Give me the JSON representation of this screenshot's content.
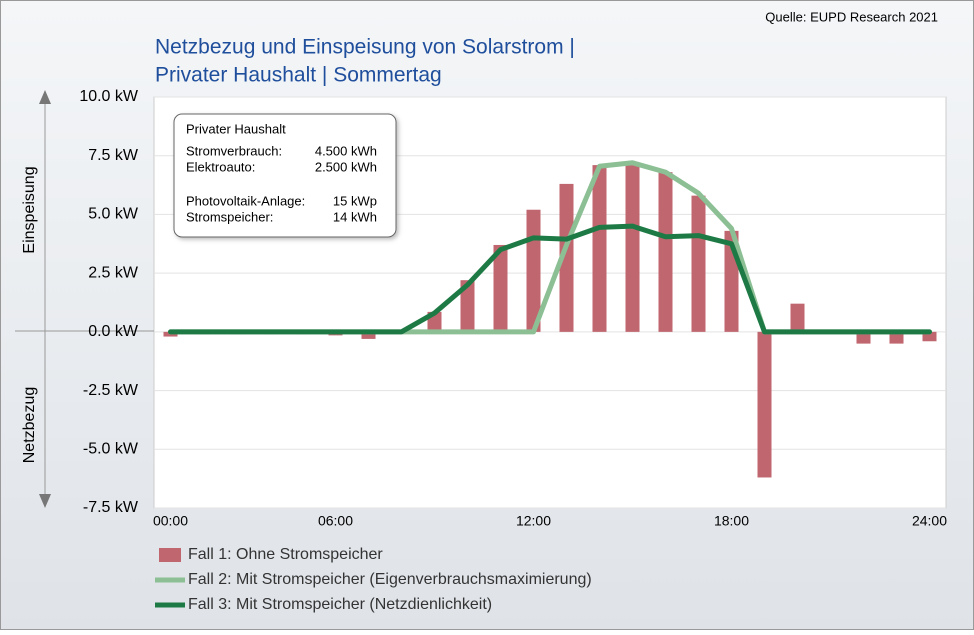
{
  "chart_data": {
    "type": "bar_line",
    "title": [
      "Netzbezug und Einspeisung von Solarstrom |",
      "Privater Haushalt | Sommertag"
    ],
    "source": "Quelle: EUPD Research 2021",
    "axis_labels": {
      "upper": "Einspeisung",
      "lower": "Netzbezug"
    },
    "categories": [
      "00:00",
      null,
      null,
      null,
      null,
      "06:00",
      null,
      null,
      null,
      null,
      null,
      "12:00",
      null,
      null,
      null,
      null,
      null,
      "18:00",
      null,
      null,
      null,
      null,
      null,
      "24:00"
    ],
    "series": [
      {
        "name": "Fall 1: Ohne Stromspeicher",
        "kind": "bar",
        "color": "#c0666f",
        "values": [
          -0.2,
          -0.1,
          -0.1,
          -0.1,
          -0.1,
          -0.15,
          -0.3,
          0,
          0.85,
          2.2,
          3.7,
          5.2,
          6.3,
          7.1,
          7.1,
          6.8,
          5.8,
          4.3,
          -6.2,
          1.2,
          0,
          -0.5,
          -0.5,
          -0.4
        ]
      },
      {
        "name": "Fall 2: Mit Stromspeicher (Eigenverbrauchsmaximierung)",
        "kind": "line",
        "color": "#8cbf94",
        "values": [
          0,
          0,
          0,
          0,
          0,
          0,
          0,
          0,
          0,
          0,
          0,
          0,
          3.7,
          7.05,
          7.2,
          6.8,
          5.9,
          4.4,
          0,
          0,
          0,
          0,
          0,
          0
        ]
      },
      {
        "name": "Fall 3: Mit Stromspeicher (Netzdienlichkeit)",
        "kind": "line",
        "color": "#1e7a45",
        "values": [
          0,
          0,
          0,
          0,
          0,
          0,
          0,
          0,
          0.8,
          2.0,
          3.5,
          4.0,
          3.95,
          4.45,
          4.5,
          4.05,
          4.1,
          3.75,
          0,
          0,
          0,
          0,
          0,
          0
        ]
      }
    ],
    "ylim": [
      -7.5,
      10
    ],
    "yticks": [
      {
        "value": -7.5,
        "label": "-7.5 kW"
      },
      {
        "value": -5,
        "label": "-5.0 kW"
      },
      {
        "value": -2.5,
        "label": "-2.5 kW"
      },
      {
        "value": 0,
        "label": "0.0 kW"
      },
      {
        "value": 2.5,
        "label": "2.5 kW"
      },
      {
        "value": 5,
        "label": "5.0 kW"
      },
      {
        "value": 7.5,
        "label": "7.5 kW"
      },
      {
        "value": 10,
        "label": "10.0 kW"
      }
    ],
    "grid": true,
    "info_box": {
      "title": "Privater Haushalt",
      "rows": [
        [
          "Stromverbrauch:",
          "4.500 kWh"
        ],
        [
          "Elektroauto:",
          "2.500 kWh"
        ],
        [
          "Photovoltaik-Anlage:",
          "15 kWp"
        ],
        [
          "Stromspeicher:",
          "14 kWh"
        ]
      ]
    }
  }
}
